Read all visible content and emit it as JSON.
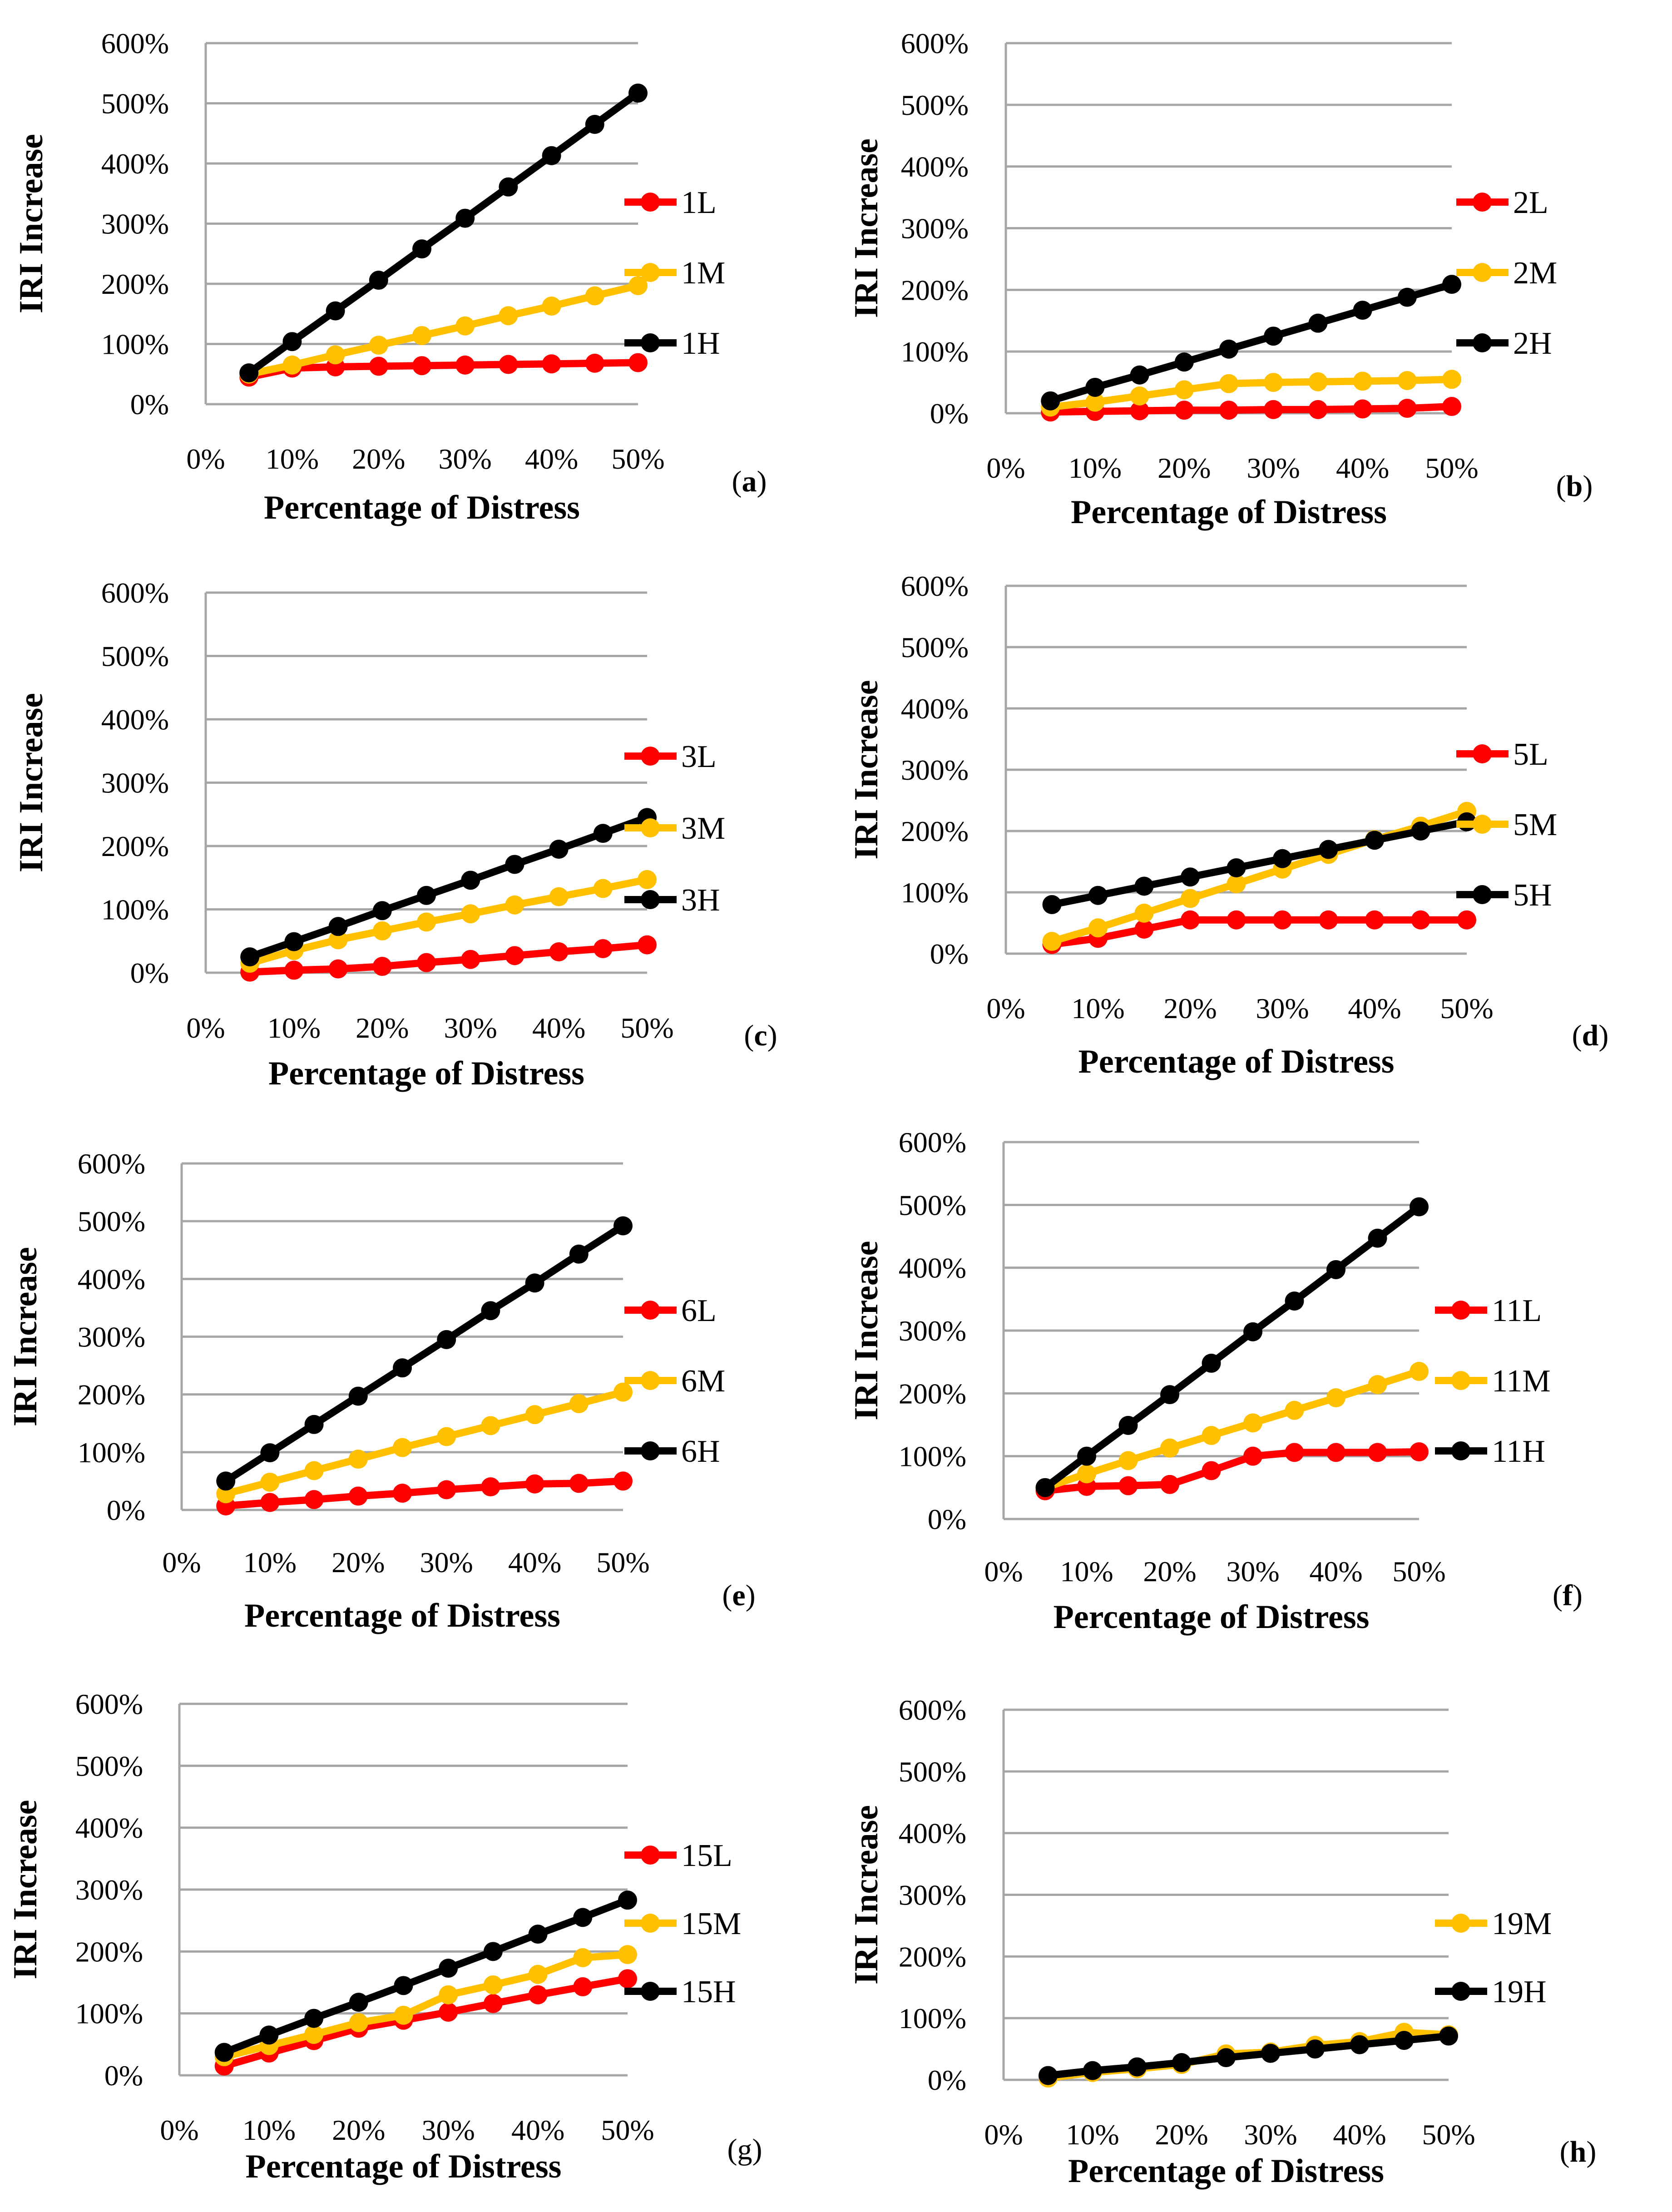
{
  "chart_data": [
    {
      "type": "line",
      "panel": "a",
      "label_prefix": "(",
      "label_letter": "a",
      "label_suffix": ")",
      "label_bold": true,
      "x": [
        5,
        10,
        15,
        20,
        25,
        30,
        35,
        40,
        45,
        50
      ],
      "xticks": [
        "0%",
        "10%",
        "20%",
        "30%",
        "40%",
        "50%"
      ],
      "yticks": [
        "0%",
        "100%",
        "200%",
        "300%",
        "400%",
        "500%",
        "600%"
      ],
      "xlim": [
        0,
        50
      ],
      "ylim": [
        0,
        600
      ],
      "xlabel": "Percentage of Distress",
      "ylabel": "IRI Increase",
      "series": [
        {
          "name": "1L",
          "color": "#ff0000",
          "values": [
            45,
            60,
            62,
            63,
            64,
            65,
            66,
            67,
            68,
            69
          ]
        },
        {
          "name": "1M",
          "color": "#ffc000",
          "values": [
            50,
            65,
            82,
            98,
            114,
            130,
            147,
            163,
            180,
            197
          ]
        },
        {
          "name": "1H",
          "color": "#000000",
          "values": [
            52,
            104,
            155,
            206,
            258,
            309,
            361,
            413,
            465,
            517
          ]
        }
      ]
    },
    {
      "type": "line",
      "panel": "b",
      "label_prefix": "(",
      "label_letter": "b",
      "label_suffix": ")",
      "label_bold": true,
      "x": [
        5,
        10,
        15,
        20,
        25,
        30,
        35,
        40,
        45,
        50
      ],
      "xticks": [
        "0%",
        "10%",
        "20%",
        "30%",
        "40%",
        "50%"
      ],
      "yticks": [
        "0%",
        "100%",
        "200%",
        "300%",
        "400%",
        "500%",
        "600%"
      ],
      "xlim": [
        0,
        50
      ],
      "ylim": [
        0,
        600
      ],
      "xlabel": "Percentage of Distress",
      "ylabel": "IRI Increase",
      "series": [
        {
          "name": "2L",
          "color": "#ff0000",
          "values": [
            2,
            3,
            4,
            5,
            5,
            6,
            6,
            7,
            8,
            11
          ]
        },
        {
          "name": "2M",
          "color": "#ffc000",
          "values": [
            10,
            18,
            28,
            38,
            48,
            50,
            51,
            52,
            53,
            55
          ]
        },
        {
          "name": "2H",
          "color": "#000000",
          "values": [
            20,
            42,
            62,
            83,
            104,
            125,
            146,
            167,
            188,
            209
          ]
        }
      ]
    },
    {
      "type": "line",
      "panel": "c",
      "label_prefix": "(",
      "label_letter": "c",
      "label_suffix": ")",
      "label_bold": true,
      "x": [
        5,
        10,
        15,
        20,
        25,
        30,
        35,
        40,
        45,
        50
      ],
      "xticks": [
        "0%",
        "10%",
        "20%",
        "30%",
        "40%",
        "50%"
      ],
      "yticks": [
        "0%",
        "100%",
        "200%",
        "300%",
        "400%",
        "500%",
        "600%"
      ],
      "xlim": [
        0,
        50
      ],
      "ylim": [
        0,
        600
      ],
      "xlabel": "Percentage of Distress",
      "ylabel": "IRI Increase",
      "series": [
        {
          "name": "3L",
          "color": "#ff0000",
          "values": [
            1,
            4,
            6,
            10,
            16,
            21,
            27,
            33,
            38,
            44
          ]
        },
        {
          "name": "3M",
          "color": "#ffc000",
          "values": [
            15,
            35,
            52,
            66,
            80,
            93,
            107,
            120,
            133,
            147
          ]
        },
        {
          "name": "3H",
          "color": "#000000",
          "values": [
            25,
            49,
            73,
            98,
            122,
            146,
            171,
            195,
            220,
            245
          ]
        }
      ]
    },
    {
      "type": "line",
      "panel": "d",
      "label_prefix": "(",
      "label_letter": "d",
      "label_suffix": ")",
      "label_bold": true,
      "x": [
        5,
        10,
        15,
        20,
        25,
        30,
        35,
        40,
        45,
        50
      ],
      "xticks": [
        "0%",
        "10%",
        "20%",
        "30%",
        "40%",
        "50%"
      ],
      "yticks": [
        "0%",
        "100%",
        "200%",
        "300%",
        "400%",
        "500%",
        "600%"
      ],
      "xlim": [
        0,
        50
      ],
      "ylim": [
        0,
        600
      ],
      "xlabel": "Percentage of Distress",
      "ylabel": "IRI Increase",
      "series": [
        {
          "name": "5L",
          "color": "#ff0000",
          "values": [
            15,
            25,
            40,
            55,
            55,
            55,
            55,
            55,
            55,
            55
          ]
        },
        {
          "name": "5M",
          "color": "#ffc000",
          "values": [
            20,
            42,
            66,
            90,
            114,
            138,
            162,
            186,
            208,
            232
          ]
        },
        {
          "name": "5H",
          "color": "#000000",
          "values": [
            80,
            95,
            110,
            125,
            140,
            155,
            170,
            185,
            200,
            215
          ]
        }
      ]
    },
    {
      "type": "line",
      "panel": "e",
      "label_prefix": "(",
      "label_letter": "e",
      "label_suffix": ")",
      "label_bold": true,
      "x": [
        5,
        10,
        15,
        20,
        25,
        30,
        35,
        40,
        45,
        50
      ],
      "xticks": [
        "0%",
        "10%",
        "20%",
        "30%",
        "40%",
        "50%"
      ],
      "yticks": [
        "0%",
        "100%",
        "200%",
        "300%",
        "400%",
        "500%",
        "600%"
      ],
      "xlim": [
        0,
        50
      ],
      "ylim": [
        0,
        600
      ],
      "xlabel": "Percentage of Distress",
      "ylabel": "IRI Increase",
      "series": [
        {
          "name": "6L",
          "color": "#ff0000",
          "values": [
            7,
            13,
            18,
            24,
            29,
            35,
            40,
            45,
            46,
            50
          ]
        },
        {
          "name": "6M",
          "color": "#ffc000",
          "values": [
            28,
            48,
            68,
            88,
            108,
            127,
            146,
            165,
            184,
            204
          ]
        },
        {
          "name": "6H",
          "color": "#000000",
          "values": [
            50,
            99,
            148,
            197,
            246,
            295,
            345,
            393,
            443,
            492
          ]
        }
      ]
    },
    {
      "type": "line",
      "panel": "f",
      "label_prefix": "(",
      "label_letter": "f",
      "label_suffix": ")",
      "label_bold": true,
      "x": [
        5,
        10,
        15,
        20,
        25,
        30,
        35,
        40,
        45,
        50
      ],
      "xticks": [
        "0%",
        "10%",
        "20%",
        "30%",
        "40%",
        "50%"
      ],
      "yticks": [
        "0%",
        "100%",
        "200%",
        "300%",
        "400%",
        "500%",
        "600%"
      ],
      "xlim": [
        0,
        50
      ],
      "ylim": [
        0,
        600
      ],
      "xlabel": "Percentage of Distress",
      "ylabel": "IRI Increase",
      "series": [
        {
          "name": "11L",
          "color": "#ff0000",
          "values": [
            45,
            52,
            53,
            55,
            77,
            100,
            106,
            106,
            106,
            107
          ]
        },
        {
          "name": "11M",
          "color": "#ffc000",
          "values": [
            50,
            72,
            93,
            113,
            133,
            153,
            173,
            193,
            214,
            235
          ]
        },
        {
          "name": "11H",
          "color": "#000000",
          "values": [
            50,
            100,
            149,
            198,
            248,
            298,
            347,
            397,
            447,
            497
          ]
        }
      ]
    },
    {
      "type": "line",
      "panel": "g",
      "label_prefix": "(",
      "label_letter": "g",
      "label_suffix": ")",
      "label_bold": false,
      "x": [
        5,
        10,
        15,
        20,
        25,
        30,
        35,
        40,
        45,
        50
      ],
      "xticks": [
        "0%",
        "10%",
        "20%",
        "30%",
        "40%",
        "50%"
      ],
      "yticks": [
        "0%",
        "100%",
        "200%",
        "300%",
        "400%",
        "500%",
        "600%"
      ],
      "xlim": [
        0,
        50
      ],
      "ylim": [
        0,
        600
      ],
      "xlabel": "Percentage of Distress",
      "ylabel": "IRI Increase",
      "series": [
        {
          "name": "15L",
          "color": "#ff0000",
          "values": [
            15,
            36,
            56,
            76,
            89,
            102,
            116,
            130,
            143,
            156
          ]
        },
        {
          "name": "15M",
          "color": "#ffc000",
          "values": [
            30,
            48,
            66,
            85,
            97,
            130,
            146,
            163,
            190,
            195
          ]
        },
        {
          "name": "15H",
          "color": "#000000",
          "values": [
            37,
            65,
            92,
            118,
            145,
            173,
            200,
            228,
            255,
            283
          ]
        }
      ]
    },
    {
      "type": "line",
      "panel": "h",
      "label_prefix": "(",
      "label_letter": "h",
      "label_suffix": ")",
      "label_bold": true,
      "x": [
        5,
        10,
        15,
        20,
        25,
        30,
        35,
        40,
        45,
        50
      ],
      "xticks": [
        "0%",
        "10%",
        "20%",
        "30%",
        "40%",
        "50%"
      ],
      "yticks": [
        "0%",
        "100%",
        "200%",
        "300%",
        "400%",
        "500%",
        "600%"
      ],
      "xlim": [
        0,
        50
      ],
      "ylim": [
        0,
        600
      ],
      "xlabel": "Percentage of Distress",
      "ylabel": "IRI Increase",
      "series": [
        {
          "name": "19M",
          "color": "#ffc000",
          "values": [
            3,
            12,
            18,
            25,
            42,
            45,
            56,
            62,
            77,
            73
          ]
        },
        {
          "name": "19H",
          "color": "#000000",
          "values": [
            7,
            15,
            21,
            28,
            36,
            43,
            50,
            57,
            64,
            71
          ]
        }
      ]
    }
  ]
}
